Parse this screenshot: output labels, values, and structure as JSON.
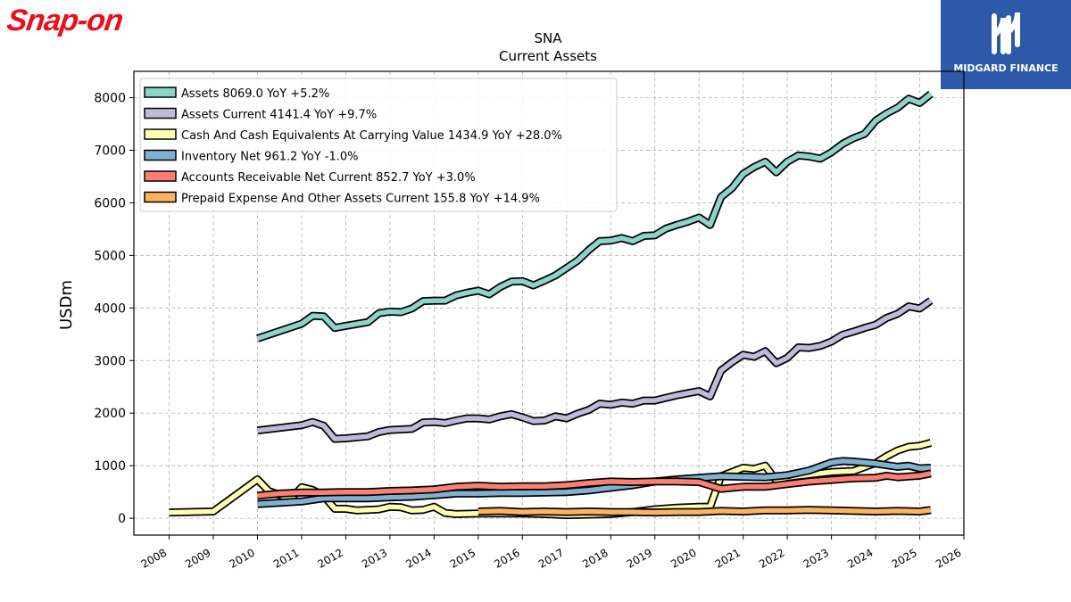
{
  "logos": {
    "left_text": "Snap-on",
    "right_text": "MIDGARD FINANCE"
  },
  "chart_data": {
    "type": "line",
    "title": "SNA",
    "subtitle": "Current  Assets",
    "ylabel": "USDm",
    "xlabel": "",
    "xlim": [
      2007.2,
      2026.0
    ],
    "ylim": [
      -320,
      8500
    ],
    "grid": true,
    "legend_placement": "top-left",
    "x_ticks": [
      "2008",
      "2009",
      "2010",
      "2011",
      "2012",
      "2013",
      "2014",
      "2015",
      "2016",
      "2017",
      "2018",
      "2019",
      "2020",
      "2021",
      "2022",
      "2023",
      "2024",
      "2025",
      "2026"
    ],
    "y_ticks": [
      "0",
      "1000",
      "2000",
      "3000",
      "4000",
      "5000",
      "6000",
      "7000",
      "8000"
    ],
    "series": [
      {
        "name": "Assets  8069.0 YoY +5.2%",
        "color": "#8dd3c7",
        "points": [
          [
            2010.0,
            3420
          ],
          [
            2011.0,
            3700
          ],
          [
            2011.25,
            3850
          ],
          [
            2011.5,
            3840
          ],
          [
            2011.75,
            3620
          ],
          [
            2012.0,
            3660
          ],
          [
            2012.5,
            3730
          ],
          [
            2012.75,
            3900
          ],
          [
            2013.0,
            3930
          ],
          [
            2013.25,
            3920
          ],
          [
            2013.5,
            3990
          ],
          [
            2013.75,
            4130
          ],
          [
            2014.0,
            4140
          ],
          [
            2014.25,
            4140
          ],
          [
            2014.5,
            4240
          ],
          [
            2014.75,
            4290
          ],
          [
            2015.0,
            4330
          ],
          [
            2015.25,
            4260
          ],
          [
            2015.5,
            4400
          ],
          [
            2015.75,
            4500
          ],
          [
            2016.0,
            4510
          ],
          [
            2016.25,
            4430
          ],
          [
            2016.5,
            4520
          ],
          [
            2016.75,
            4620
          ],
          [
            2017.0,
            4760
          ],
          [
            2017.25,
            4900
          ],
          [
            2017.5,
            5100
          ],
          [
            2017.75,
            5270
          ],
          [
            2018.0,
            5280
          ],
          [
            2018.25,
            5330
          ],
          [
            2018.5,
            5270
          ],
          [
            2018.75,
            5370
          ],
          [
            2019.0,
            5380
          ],
          [
            2019.25,
            5510
          ],
          [
            2019.5,
            5580
          ],
          [
            2019.75,
            5640
          ],
          [
            2020.0,
            5720
          ],
          [
            2020.25,
            5580
          ],
          [
            2020.5,
            6110
          ],
          [
            2020.75,
            6280
          ],
          [
            2021.0,
            6550
          ],
          [
            2021.25,
            6680
          ],
          [
            2021.5,
            6780
          ],
          [
            2021.75,
            6580
          ],
          [
            2022.0,
            6780
          ],
          [
            2022.25,
            6900
          ],
          [
            2022.5,
            6880
          ],
          [
            2022.75,
            6840
          ],
          [
            2023.0,
            6960
          ],
          [
            2023.25,
            7120
          ],
          [
            2023.5,
            7230
          ],
          [
            2023.75,
            7310
          ],
          [
            2024.0,
            7560
          ],
          [
            2024.25,
            7700
          ],
          [
            2024.5,
            7810
          ],
          [
            2024.75,
            7980
          ],
          [
            2025.0,
            7900
          ],
          [
            2025.25,
            8069
          ]
        ]
      },
      {
        "name": "Assets Current  4141.4 YoY +9.7%",
        "color": "#bebada",
        "points": [
          [
            2010.0,
            1670
          ],
          [
            2011.0,
            1770
          ],
          [
            2011.25,
            1830
          ],
          [
            2011.5,
            1760
          ],
          [
            2011.75,
            1510
          ],
          [
            2012.0,
            1520
          ],
          [
            2012.5,
            1560
          ],
          [
            2012.75,
            1640
          ],
          [
            2013.0,
            1680
          ],
          [
            2013.5,
            1700
          ],
          [
            2013.75,
            1820
          ],
          [
            2014.0,
            1830
          ],
          [
            2014.25,
            1810
          ],
          [
            2014.5,
            1860
          ],
          [
            2014.75,
            1900
          ],
          [
            2015.0,
            1900
          ],
          [
            2015.25,
            1880
          ],
          [
            2015.5,
            1940
          ],
          [
            2015.75,
            1980
          ],
          [
            2016.0,
            1920
          ],
          [
            2016.25,
            1850
          ],
          [
            2016.5,
            1860
          ],
          [
            2016.75,
            1940
          ],
          [
            2017.0,
            1900
          ],
          [
            2017.25,
            1990
          ],
          [
            2017.5,
            2060
          ],
          [
            2017.75,
            2180
          ],
          [
            2018.0,
            2160
          ],
          [
            2018.25,
            2200
          ],
          [
            2018.5,
            2180
          ],
          [
            2018.75,
            2240
          ],
          [
            2019.0,
            2240
          ],
          [
            2019.25,
            2290
          ],
          [
            2019.5,
            2340
          ],
          [
            2019.75,
            2380
          ],
          [
            2020.0,
            2420
          ],
          [
            2020.25,
            2320
          ],
          [
            2020.5,
            2810
          ],
          [
            2020.75,
            2970
          ],
          [
            2021.0,
            3110
          ],
          [
            2021.25,
            3070
          ],
          [
            2021.5,
            3180
          ],
          [
            2021.75,
            2950
          ],
          [
            2022.0,
            3050
          ],
          [
            2022.25,
            3250
          ],
          [
            2022.5,
            3240
          ],
          [
            2022.75,
            3280
          ],
          [
            2023.0,
            3360
          ],
          [
            2023.25,
            3490
          ],
          [
            2023.5,
            3550
          ],
          [
            2023.75,
            3620
          ],
          [
            2024.0,
            3680
          ],
          [
            2024.25,
            3810
          ],
          [
            2024.5,
            3890
          ],
          [
            2024.75,
            4030
          ],
          [
            2025.0,
            3990
          ],
          [
            2025.25,
            4141
          ]
        ]
      },
      {
        "name": "Cash And Cash Equivalents At Carrying Value  1434.9 YoY +28.0%",
        "color": "#ffffb3",
        "points": [
          [
            2008.0,
            110
          ],
          [
            2009.0,
            130
          ],
          [
            2010.0,
            740
          ],
          [
            2010.25,
            520
          ],
          [
            2010.75,
            370
          ],
          [
            2011.0,
            590
          ],
          [
            2011.25,
            540
          ],
          [
            2011.5,
            430
          ],
          [
            2011.75,
            180
          ],
          [
            2012.0,
            180
          ],
          [
            2012.25,
            150
          ],
          [
            2012.5,
            160
          ],
          [
            2012.75,
            170
          ],
          [
            2013.0,
            220
          ],
          [
            2013.25,
            210
          ],
          [
            2013.5,
            150
          ],
          [
            2013.75,
            160
          ],
          [
            2014.0,
            220
          ],
          [
            2014.25,
            100
          ],
          [
            2014.5,
            80
          ],
          [
            2015.0,
            90
          ],
          [
            2016.0,
            90
          ],
          [
            2016.5,
            80
          ],
          [
            2017.0,
            60
          ],
          [
            2018.0,
            80
          ],
          [
            2018.5,
            120
          ],
          [
            2019.0,
            170
          ],
          [
            2019.5,
            200
          ],
          [
            2020.0,
            220
          ],
          [
            2020.25,
            220
          ],
          [
            2020.5,
            800
          ],
          [
            2021.0,
            960
          ],
          [
            2021.25,
            940
          ],
          [
            2021.5,
            1000
          ],
          [
            2021.75,
            720
          ],
          [
            2022.0,
            780
          ],
          [
            2022.5,
            830
          ],
          [
            2023.0,
            880
          ],
          [
            2023.5,
            900
          ],
          [
            2024.0,
            1050
          ],
          [
            2024.25,
            1180
          ],
          [
            2024.5,
            1290
          ],
          [
            2024.75,
            1360
          ],
          [
            2025.0,
            1380
          ],
          [
            2025.25,
            1435
          ]
        ]
      },
      {
        "name": "Inventory Net  961.2 YoY -1.0%",
        "color": "#80b1d3",
        "points": [
          [
            2010.0,
            270
          ],
          [
            2011.0,
            320
          ],
          [
            2011.5,
            380
          ],
          [
            2012.0,
            380
          ],
          [
            2012.5,
            380
          ],
          [
            2013.0,
            400
          ],
          [
            2013.5,
            410
          ],
          [
            2014.0,
            440
          ],
          [
            2014.5,
            470
          ],
          [
            2015.0,
            470
          ],
          [
            2015.5,
            480
          ],
          [
            2016.0,
            480
          ],
          [
            2016.5,
            490
          ],
          [
            2017.0,
            500
          ],
          [
            2017.5,
            530
          ],
          [
            2018.0,
            580
          ],
          [
            2018.5,
            630
          ],
          [
            2019.0,
            700
          ],
          [
            2019.5,
            740
          ],
          [
            2020.0,
            770
          ],
          [
            2020.5,
            800
          ],
          [
            2021.0,
            790
          ],
          [
            2021.5,
            780
          ],
          [
            2022.0,
            820
          ],
          [
            2022.5,
            910
          ],
          [
            2023.0,
            1060
          ],
          [
            2023.25,
            1090
          ],
          [
            2023.5,
            1080
          ],
          [
            2024.0,
            1040
          ],
          [
            2024.5,
            980
          ],
          [
            2024.75,
            1000
          ],
          [
            2025.0,
            950
          ],
          [
            2025.25,
            961
          ]
        ]
      },
      {
        "name": "Accounts Receivable Net Current  852.7 YoY +3.0%",
        "color": "#fb8072",
        "points": [
          [
            2010.0,
            430
          ],
          [
            2010.5,
            470
          ],
          [
            2011.0,
            490
          ],
          [
            2011.5,
            490
          ],
          [
            2012.0,
            500
          ],
          [
            2012.5,
            500
          ],
          [
            2013.0,
            520
          ],
          [
            2013.5,
            530
          ],
          [
            2014.0,
            550
          ],
          [
            2014.5,
            600
          ],
          [
            2015.0,
            620
          ],
          [
            2015.5,
            600
          ],
          [
            2016.0,
            610
          ],
          [
            2016.5,
            610
          ],
          [
            2017.0,
            630
          ],
          [
            2017.5,
            670
          ],
          [
            2018.0,
            700
          ],
          [
            2018.5,
            690
          ],
          [
            2019.0,
            700
          ],
          [
            2019.5,
            700
          ],
          [
            2020.0,
            690
          ],
          [
            2020.5,
            560
          ],
          [
            2021.0,
            600
          ],
          [
            2021.5,
            600
          ],
          [
            2022.0,
            650
          ],
          [
            2022.5,
            700
          ],
          [
            2023.0,
            730
          ],
          [
            2023.5,
            760
          ],
          [
            2024.0,
            770
          ],
          [
            2024.25,
            810
          ],
          [
            2024.5,
            780
          ],
          [
            2025.0,
            810
          ],
          [
            2025.25,
            853
          ]
        ]
      },
      {
        "name": "Prepaid Expense And Other Assets Current  155.8 YoY +14.9%",
        "color": "#fdb462",
        "points": [
          [
            2015.0,
            130
          ],
          [
            2015.5,
            140
          ],
          [
            2016.0,
            120
          ],
          [
            2016.5,
            130
          ],
          [
            2017.0,
            120
          ],
          [
            2017.5,
            130
          ],
          [
            2018.0,
            120
          ],
          [
            2018.5,
            120
          ],
          [
            2019.0,
            110
          ],
          [
            2019.5,
            120
          ],
          [
            2020.0,
            120
          ],
          [
            2020.5,
            140
          ],
          [
            2021.0,
            130
          ],
          [
            2021.5,
            150
          ],
          [
            2022.0,
            150
          ],
          [
            2022.5,
            160
          ],
          [
            2023.0,
            150
          ],
          [
            2023.5,
            140
          ],
          [
            2024.0,
            130
          ],
          [
            2024.5,
            140
          ],
          [
            2025.0,
            130
          ],
          [
            2025.25,
            156
          ]
        ]
      }
    ]
  }
}
